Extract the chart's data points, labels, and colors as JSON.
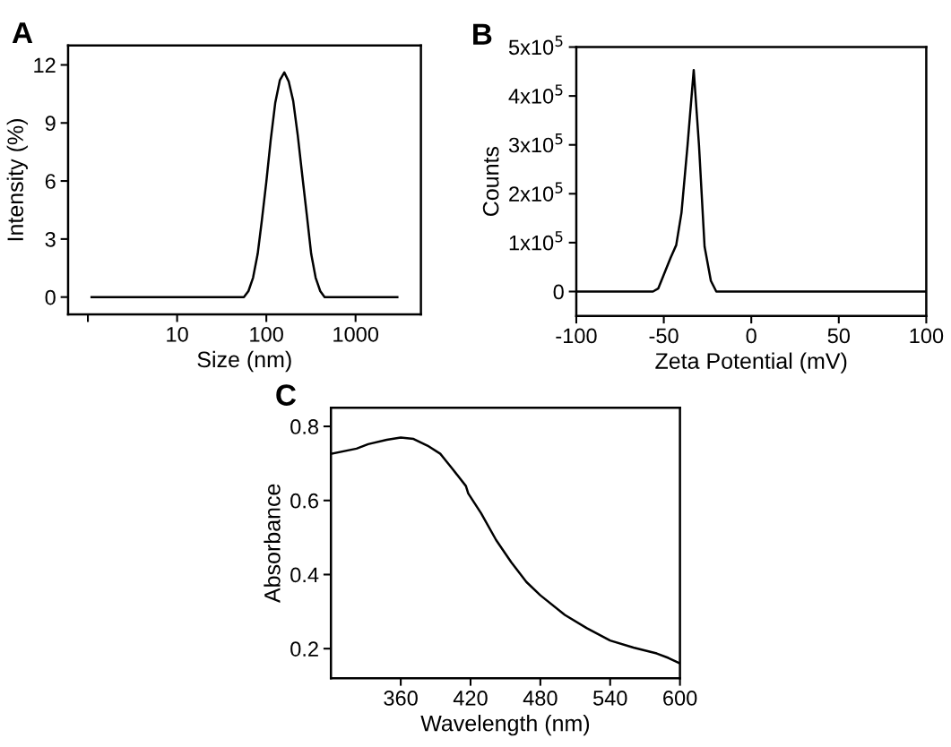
{
  "chart_data": [
    {
      "type": "line",
      "title": "A",
      "xlabel": "Size (nm)",
      "ylabel": "Intensity (%)",
      "log": "x",
      "grid": false,
      "marker": "none",
      "line_style": "solid",
      "x": [
        1.1,
        56,
        63,
        71,
        80,
        89,
        100,
        112,
        126,
        142,
        159,
        178,
        200,
        225,
        253,
        284,
        318,
        357,
        402,
        450,
        2940
      ],
      "series": [
        {
          "color": "#000000",
          "values": [
            0,
            0,
            0.31,
            1.0,
            2.24,
            3.95,
            5.96,
            8.13,
            10.06,
            11.22,
            11.61,
            11.15,
            10.14,
            8.36,
            6.27,
            4.26,
            2.24,
            1.0,
            0.31,
            0,
            0
          ]
        }
      ],
      "xlim": [
        0.6,
        5400
      ],
      "xticks": [
        {
          "value": 1,
          "label": null
        },
        10,
        100,
        1000
      ],
      "ylim": [
        -0.9,
        13
      ],
      "yticks": [
        0,
        3,
        6,
        9,
        12
      ]
    },
    {
      "type": "line",
      "title": "B",
      "xlabel": "Zeta Potential (mV)",
      "ylabel": "Counts",
      "grid": false,
      "marker": "none",
      "line_style": "solid",
      "x": [
        -100,
        -56.2,
        -53.2,
        -49.6,
        -46.1,
        -42.9,
        -39.9,
        -36.4,
        -32.9,
        -29.9,
        -26.7,
        -23.1,
        -20.0,
        100
      ],
      "series": [
        {
          "color": "#000000",
          "values": [
            0,
            0,
            6000,
            38000,
            69000,
            95000,
            161000,
            300000,
            453000,
            300000,
            92000,
            22000,
            0,
            0
          ]
        }
      ],
      "xlim": [
        -100,
        100
      ],
      "xticks": [
        -100,
        -50,
        0,
        50,
        100
      ],
      "ylim": [
        -50000,
        500000
      ],
      "yticks": [
        0,
        {
          "value": 100000,
          "label": "1x10$^{5}$"
        },
        {
          "value": 200000,
          "label": "2x10$^{5}$"
        },
        {
          "value": 300000,
          "label": "3x10$^{5}$"
        },
        {
          "value": 400000,
          "label": "4x10$^{5}$"
        },
        {
          "value": 500000,
          "label": "5x10$^{5}$"
        }
      ]
    },
    {
      "type": "line",
      "title": "C",
      "xlabel": "Wavelength (nm)",
      "ylabel": "Absorbance",
      "grid": false,
      "marker": "none",
      "line_style": "solid",
      "x": [
        300,
        322,
        332,
        348,
        360,
        371,
        383,
        394,
        404,
        416,
        418,
        429,
        442,
        455,
        468,
        480,
        501,
        520,
        540,
        560,
        580,
        590,
        600
      ],
      "series": [
        {
          "color": "#000000",
          "values": [
            0.726,
            0.74,
            0.752,
            0.764,
            0.77,
            0.766,
            0.748,
            0.726,
            0.687,
            0.639,
            0.619,
            0.566,
            0.493,
            0.433,
            0.38,
            0.344,
            0.291,
            0.255,
            0.222,
            0.203,
            0.187,
            0.175,
            0.16
          ]
        }
      ],
      "xlim": [
        300,
        600
      ],
      "xticks": [
        360,
        420,
        480,
        540,
        600
      ],
      "ylim": [
        0.12,
        0.85
      ],
      "yticks": [
        0.2,
        0.4,
        0.6,
        0.8
      ]
    }
  ]
}
